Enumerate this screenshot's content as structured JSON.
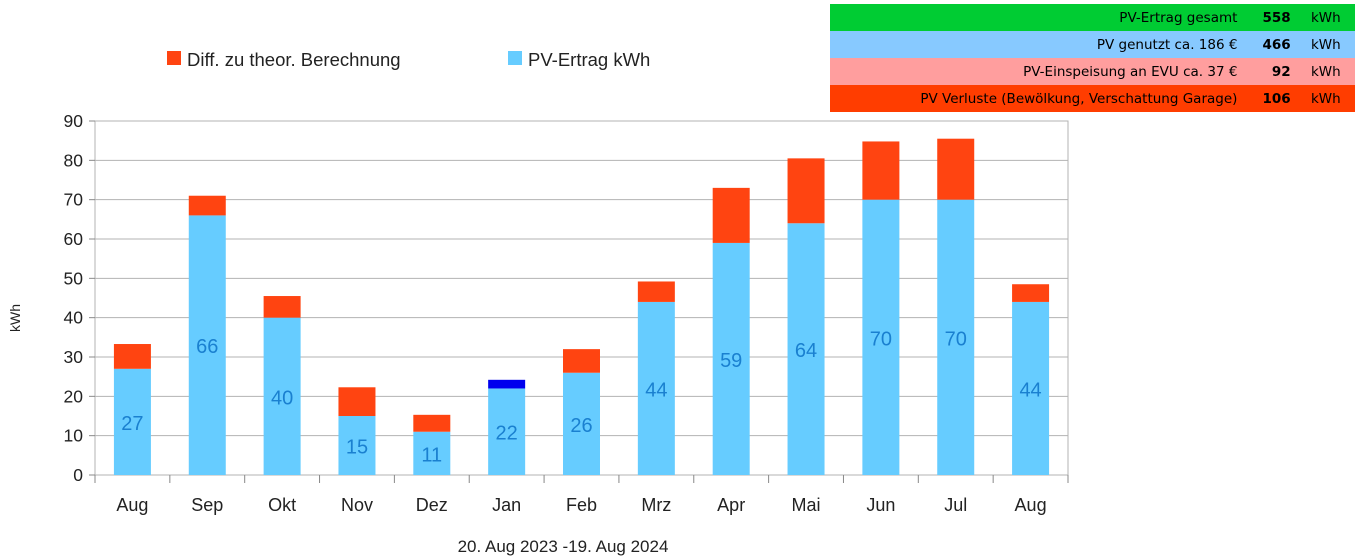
{
  "summary": {
    "rows": [
      {
        "label": "PV-Ertrag gesamt",
        "value": "558",
        "unit": "kWh",
        "bg": "#00cc33"
      },
      {
        "label": "PV genutzt ca. 186 €",
        "value": "466",
        "unit": "kWh",
        "bg": "#87c9ff"
      },
      {
        "label": "PV-Einspeisung an EVU ca. 37 €",
        "value": "92",
        "unit": "kWh",
        "bg": "#ff9e9e"
      },
      {
        "label": "PV Verluste (Bewölkung, Verschattung Garage)",
        "value": "106",
        "unit": "kWh",
        "bg": "#ff3d00"
      }
    ]
  },
  "colors": {
    "pv": "#66ccff",
    "diff": "#ff4411",
    "diff_negative": "#0000ee",
    "bar_label": "#1a80d0",
    "grid": "#b3b3b3"
  },
  "chart_data": {
    "type": "bar",
    "stacked": true,
    "title": "",
    "xlabel": "20. Aug 2023 -19. Aug  2024",
    "ylabel": "kWh",
    "ylim": [
      0,
      90
    ],
    "yticks": [
      0,
      10,
      20,
      30,
      40,
      50,
      60,
      70,
      80,
      90
    ],
    "grid": true,
    "legend_position": "top",
    "legend": [
      "Diff. zu theor. Berechnung",
      "PV-Ertrag kWh"
    ],
    "categories": [
      "Aug",
      "Sep",
      "Okt",
      "Nov",
      "Dez",
      "Jan",
      "Feb",
      "Mrz",
      "Apr",
      "Mai",
      "Jun",
      "Jul",
      "Aug"
    ],
    "series": [
      {
        "name": "PV-Ertrag kWh",
        "values": [
          27,
          66,
          40,
          15,
          11,
          22,
          26,
          44,
          59,
          64,
          70,
          70,
          44
        ],
        "labels": [
          "27",
          "66",
          "40",
          "15",
          "11",
          "22",
          "26",
          "44",
          "59",
          "64",
          "70",
          "70",
          "44"
        ]
      },
      {
        "name": "Diff. zu theor. Berechnung",
        "values": [
          6.3,
          5,
          5.5,
          7.3,
          4.3,
          2.2,
          6,
          5.2,
          14,
          16.5,
          14.8,
          15.5,
          4.5
        ]
      }
    ]
  }
}
